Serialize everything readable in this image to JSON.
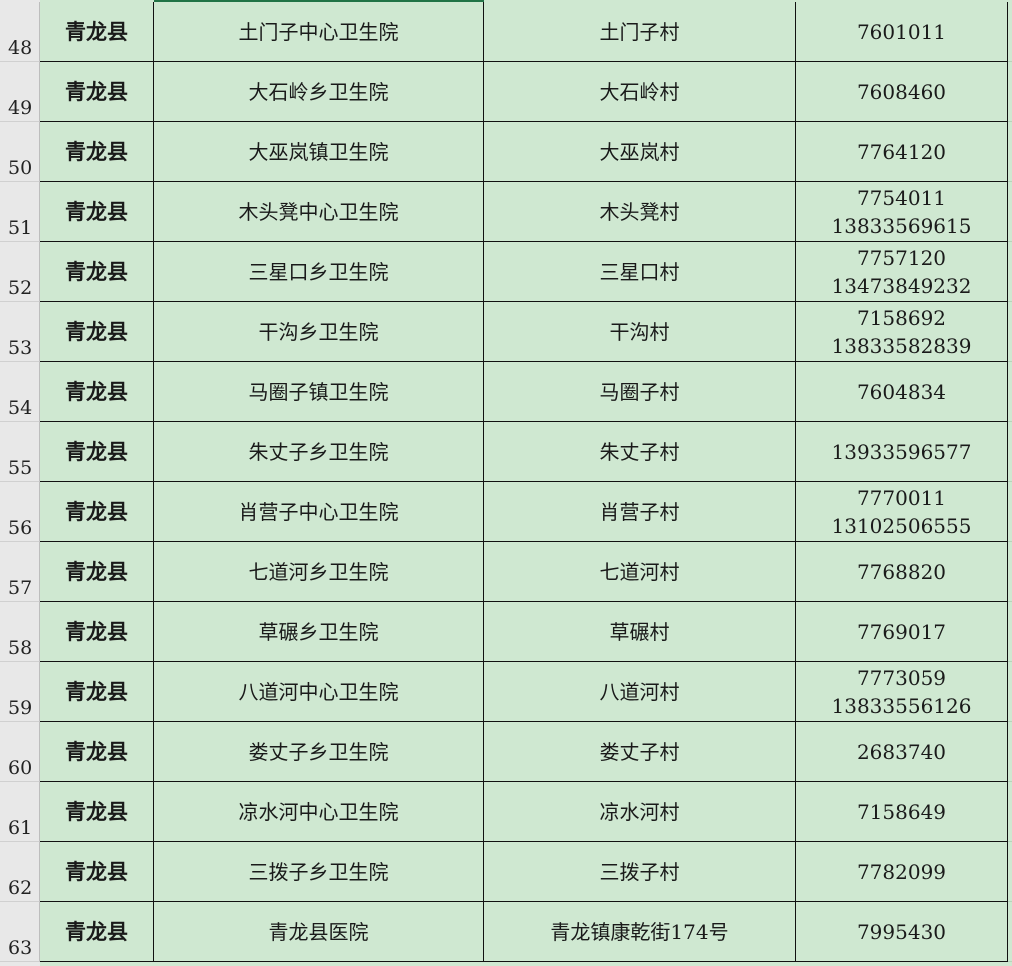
{
  "rows": [
    {
      "num": "48",
      "county": "青龙县",
      "hospital": "土门子中心卫生院",
      "village": "土门子村",
      "phones": [
        "7601011"
      ]
    },
    {
      "num": "49",
      "county": "青龙县",
      "hospital": "大石岭乡卫生院",
      "village": "大石岭村",
      "phones": [
        "7608460"
      ]
    },
    {
      "num": "50",
      "county": "青龙县",
      "hospital": "大巫岚镇卫生院",
      "village": "大巫岚村",
      "phones": [
        "7764120"
      ]
    },
    {
      "num": "51",
      "county": "青龙县",
      "hospital": "木头凳中心卫生院",
      "village": "木头凳村",
      "phones": [
        "7754011",
        "13833569615"
      ]
    },
    {
      "num": "52",
      "county": "青龙县",
      "hospital": "三星口乡卫生院",
      "village": "三星口村",
      "phones": [
        "7757120",
        "13473849232"
      ]
    },
    {
      "num": "53",
      "county": "青龙县",
      "hospital": "干沟乡卫生院",
      "village": "干沟村",
      "phones": [
        "7158692",
        "13833582839"
      ]
    },
    {
      "num": "54",
      "county": "青龙县",
      "hospital": "马圈子镇卫生院",
      "village": "马圈子村",
      "phones": [
        "7604834"
      ]
    },
    {
      "num": "55",
      "county": "青龙县",
      "hospital": "朱丈子乡卫生院",
      "village": "朱丈子村",
      "phones": [
        "13933596577"
      ]
    },
    {
      "num": "56",
      "county": "青龙县",
      "hospital": "肖营子中心卫生院",
      "village": "肖营子村",
      "phones": [
        "7770011",
        "13102506555"
      ]
    },
    {
      "num": "57",
      "county": "青龙县",
      "hospital": "七道河乡卫生院",
      "village": "七道河村",
      "phones": [
        "7768820"
      ]
    },
    {
      "num": "58",
      "county": "青龙县",
      "hospital": "草碾乡卫生院",
      "village": "草碾村",
      "phones": [
        "7769017"
      ]
    },
    {
      "num": "59",
      "county": "青龙县",
      "hospital": "八道河中心卫生院",
      "village": "八道河村",
      "phones": [
        "7773059",
        "13833556126"
      ]
    },
    {
      "num": "60",
      "county": "青龙县",
      "hospital": "娄丈子乡卫生院",
      "village": "娄丈子村",
      "phones": [
        "2683740"
      ]
    },
    {
      "num": "61",
      "county": "青龙县",
      "hospital": "凉水河中心卫生院",
      "village": "凉水河村",
      "phones": [
        "7158649"
      ]
    },
    {
      "num": "62",
      "county": "青龙县",
      "hospital": "三拨子乡卫生院",
      "village": "三拨子村",
      "phones": [
        "7782099"
      ]
    },
    {
      "num": "63",
      "county": "青龙县",
      "hospital": "青龙县医院",
      "village": "青龙镇康乾街174号",
      "phones": [
        "7995430"
      ]
    }
  ],
  "colors": {
    "cell_bg": "#cfe8d1",
    "header_bg": "#e8e8e8",
    "selection": "#217346"
  }
}
